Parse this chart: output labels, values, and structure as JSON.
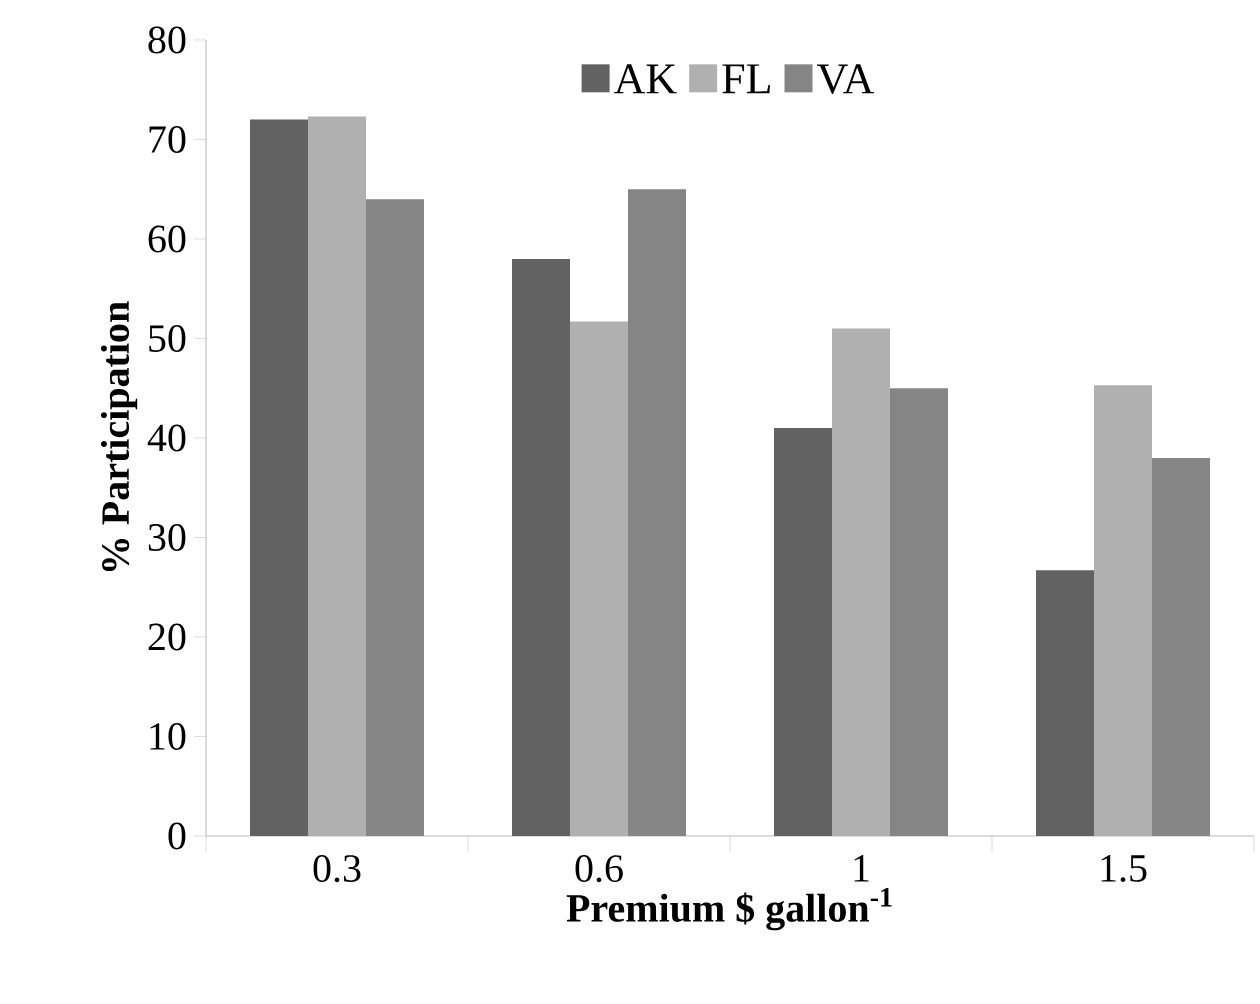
{
  "chart_data": {
    "type": "bar",
    "xlabel": "Premium $ gallon$^{-1}$",
    "ylabel": "% Participation",
    "categories": [
      "0.3",
      "0.6",
      "1",
      "1.5"
    ],
    "series": [
      {
        "name": "AK",
        "color": "#626262",
        "values": [
          72,
          58,
          41,
          26.7
        ]
      },
      {
        "name": "FL",
        "color": "#b0b0b0",
        "values": [
          72.3,
          51.7,
          51,
          45.3
        ]
      },
      {
        "name": "VA",
        "color": "#858585",
        "values": [
          64,
          65,
          45,
          38
        ]
      }
    ],
    "ylim": [
      0,
      80
    ],
    "yticks": [
      0,
      10,
      20,
      30,
      40,
      50,
      60,
      70,
      80
    ],
    "legend": "top",
    "grid": false
  }
}
